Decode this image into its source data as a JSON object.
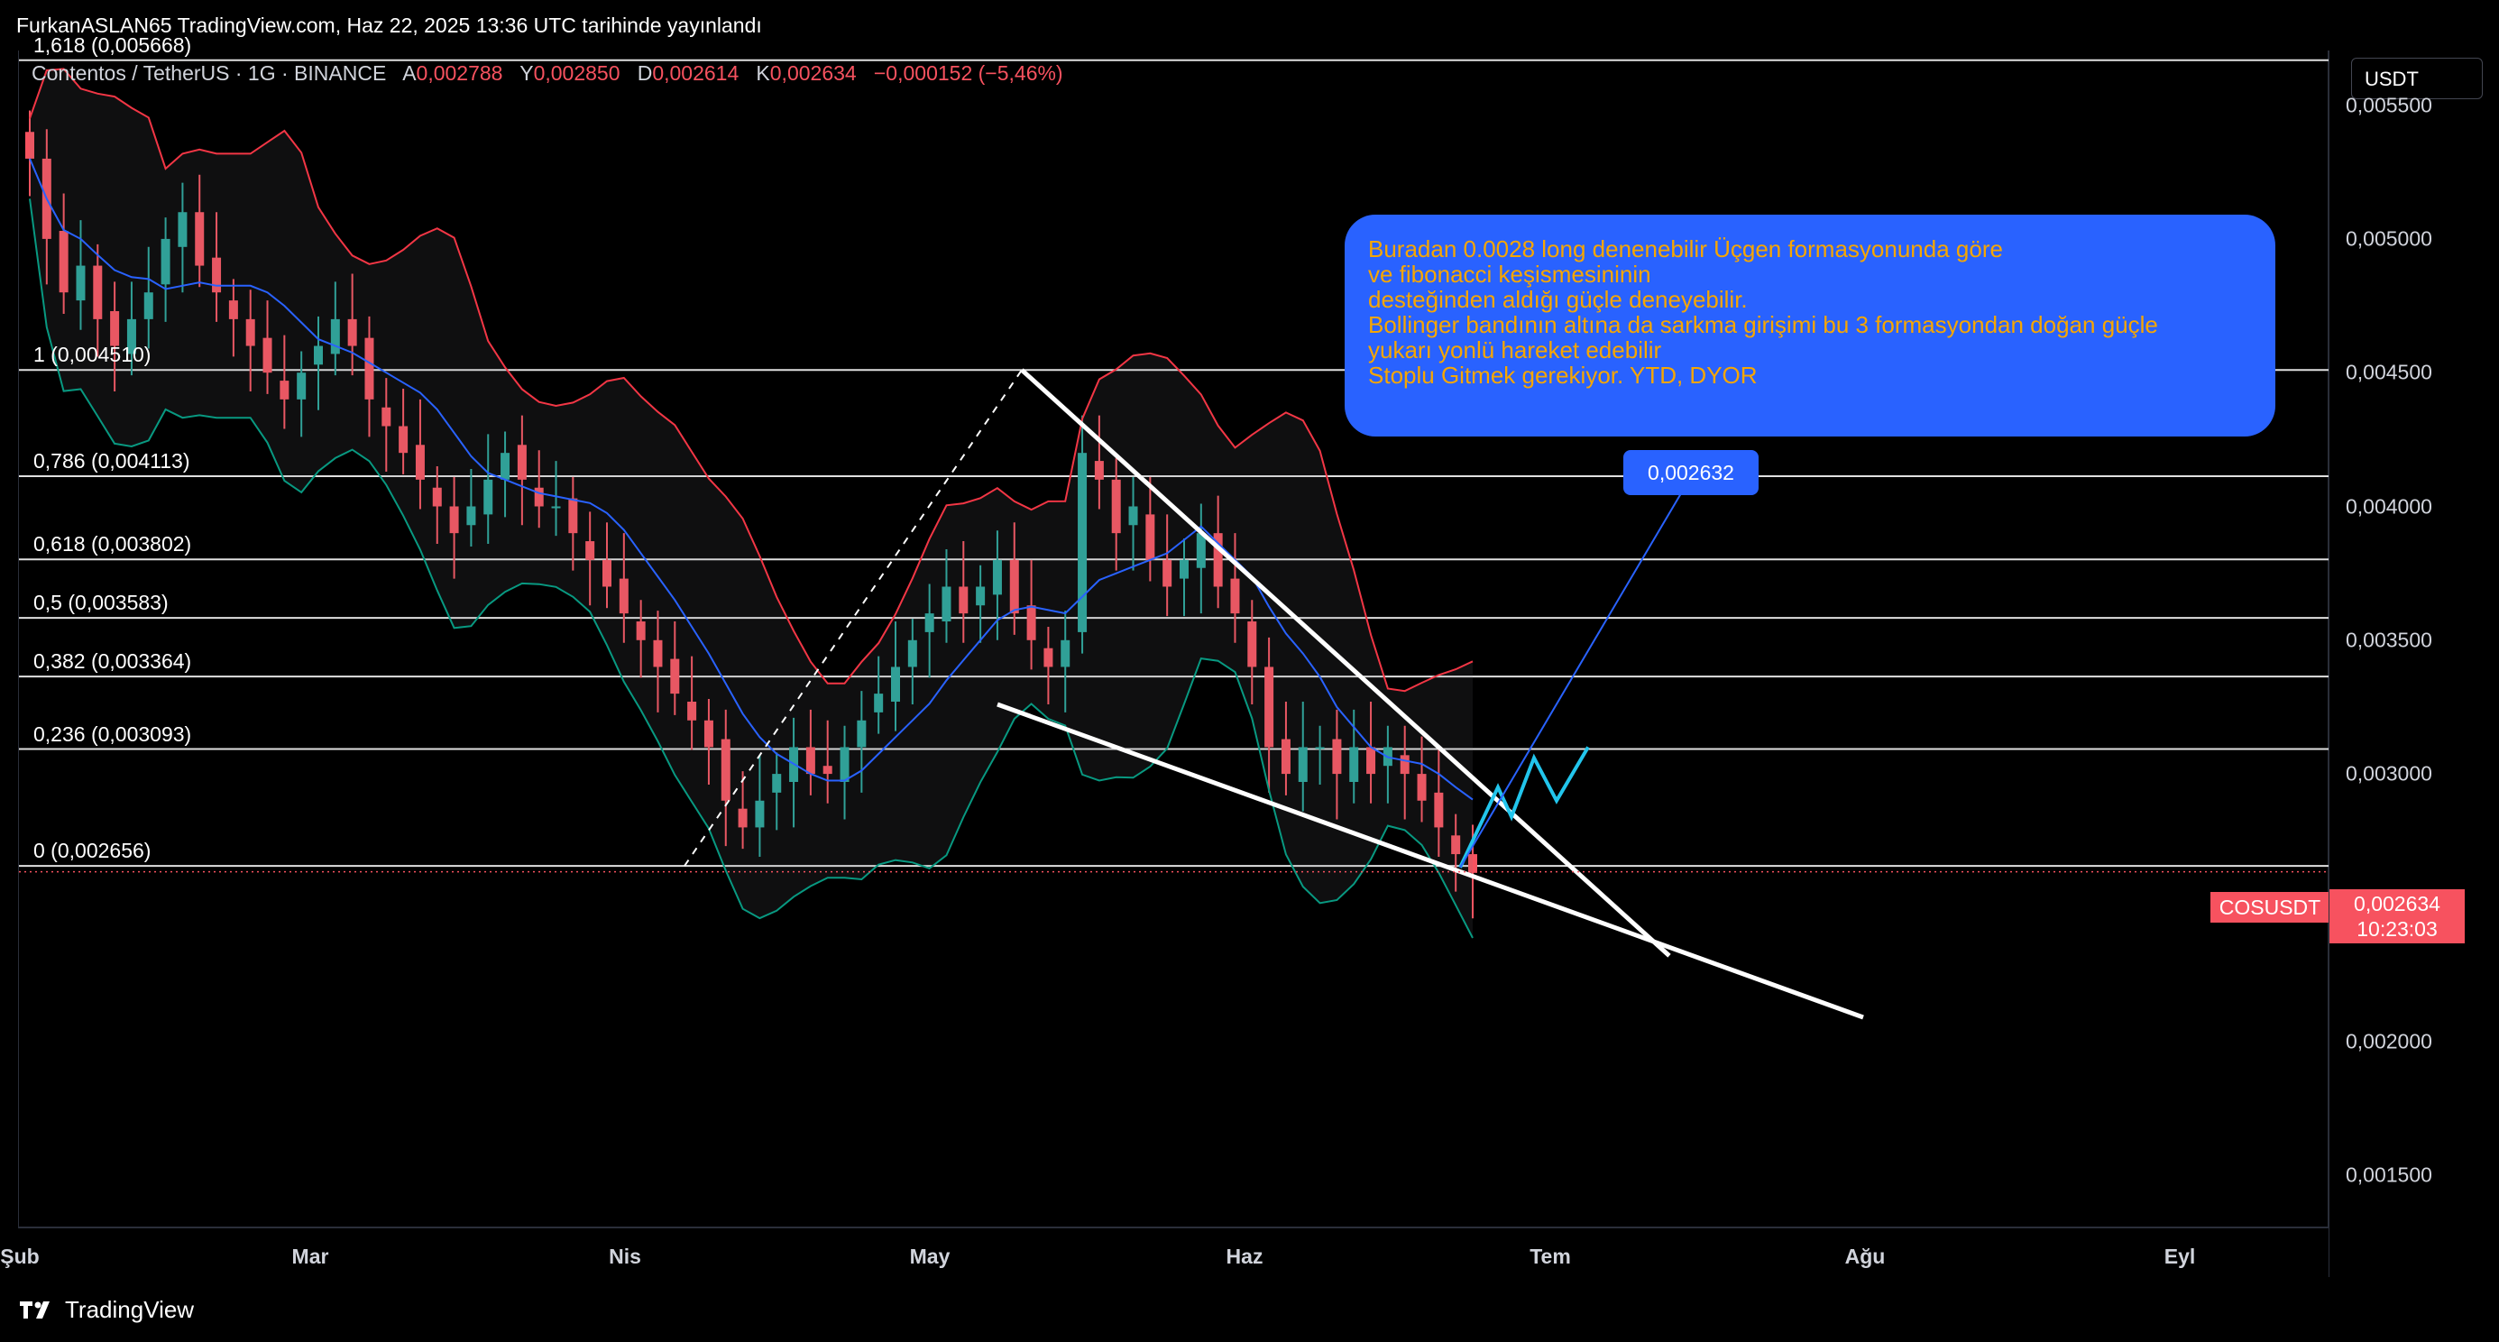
{
  "header": {
    "published": "FurkanASLAN65 TradingView.com, Haz 22, 2025 13:36 UTC tarihinde yayınlandı"
  },
  "legend": {
    "symbol": "Contentos / TetherUS · 1G · BINANCE",
    "a_label": "A",
    "a_value": "0,002788",
    "y_label": "Y",
    "y_value": "0,002850",
    "d_label": "D",
    "d_value": "0,002614",
    "k_label": "K",
    "k_value": "0,002634",
    "change": "−0,000152 (−5,46%)"
  },
  "price_axis": {
    "unit": "USDT",
    "ticks": [
      "0,005500",
      "0,005000",
      "0,004500",
      "0,004000",
      "0,003500",
      "0,003000",
      "0,002000",
      "0,001500"
    ],
    "last_price": "0,002634",
    "countdown": "10:23:03",
    "symbol_tag": "COSUSDT"
  },
  "time_axis": {
    "labels": [
      "Şub",
      "Mar",
      "Nis",
      "May",
      "Haz",
      "Tem",
      "Ağu",
      "Eyl"
    ]
  },
  "fib_levels": [
    {
      "label": "1,618 (0,005668)",
      "price": 0.005668
    },
    {
      "label": "1 (0,004510)",
      "price": 0.00451
    },
    {
      "label": "0,786 (0,004113)",
      "price": 0.004113
    },
    {
      "label": "0,618 (0,003802)",
      "price": 0.003802
    },
    {
      "label": "0,5 (0,003583)",
      "price": 0.003583
    },
    {
      "label": "0,382 (0,003364)",
      "price": 0.003364
    },
    {
      "label": "0,236 (0,003093)",
      "price": 0.003093
    },
    {
      "label": "0 (0,002656)",
      "price": 0.002656
    }
  ],
  "annotation": {
    "lines": [
      "Buradan 0.0028 long denenebilir Üçgen formasyonunda göre",
      "ve fibonacci keşismesininin",
      "desteğinden aldığı güçle deneyebilir.",
      "Bollinger bandının altına da sarkma girişimi bu 3 formasyondan doğan güçle",
      "yukarı yonlü hareket edebilir",
      "Stoplu Gitmek gerekiyor. YTD, DYOR"
    ],
    "price_tag": "0,002632"
  },
  "colors": {
    "up": "#26a69a",
    "down": "#f7525f",
    "basis": "#2962ff",
    "upper": "#f23645",
    "lower": "#089981",
    "note_bg": "#2962ff",
    "note_text": "#f7a600"
  },
  "footer": {
    "brand": "TradingView"
  },
  "chart_data": {
    "type": "candlestick",
    "title": "Contentos / TetherUS · 1G · BINANCE",
    "ylim": [
      0.0015,
      0.0057
    ],
    "x_labels": [
      "Şub",
      "Mar",
      "Nis",
      "May",
      "Haz",
      "Tem",
      "Ağu",
      "Eyl"
    ],
    "close_approx": [
      0.0053,
      0.005,
      0.0048,
      0.0049,
      0.0047,
      0.0046,
      0.0047,
      0.0048,
      0.005,
      0.0051,
      0.0049,
      0.0048,
      0.0047,
      0.0046,
      0.0045,
      0.0044,
      0.0045,
      0.0046,
      0.0047,
      0.0046,
      0.0044,
      0.0043,
      0.0042,
      0.0041,
      0.004,
      0.0039,
      0.004,
      0.0041,
      0.0042,
      0.0041,
      0.004,
      0.004,
      0.0039,
      0.0038,
      0.0037,
      0.0036,
      0.0035,
      0.0034,
      0.0033,
      0.0032,
      0.0031,
      0.0029,
      0.0028,
      0.0029,
      0.003,
      0.0031,
      0.003,
      0.003,
      0.0031,
      0.0032,
      0.0033,
      0.0034,
      0.0035,
      0.0036,
      0.0037,
      0.0036,
      0.0037,
      0.0038,
      0.0036,
      0.0035,
      0.0034,
      0.0035,
      0.0042,
      0.0041,
      0.0039,
      0.004,
      0.0038,
      0.0037,
      0.0038,
      0.0039,
      0.0037,
      0.0036,
      0.0034,
      0.0031,
      0.003,
      0.0031,
      0.0031,
      0.003,
      0.0031,
      0.003,
      0.0031,
      0.003,
      0.0029,
      0.0028,
      0.0027,
      0.00263
    ],
    "fib_levels": [
      0.005668,
      0.00451,
      0.004113,
      0.003802,
      0.003583,
      0.003364,
      0.003093,
      0.002656
    ],
    "last_close": 0.002634
  }
}
